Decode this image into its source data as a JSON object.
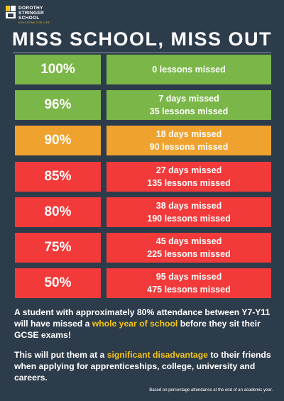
{
  "header": {
    "school_name": [
      "DOROTHY",
      "STRINGER",
      "SCHOOL"
    ],
    "tagline": "EDUCATING FOR LIFE",
    "title": "MISS SCHOOL, MISS OUT"
  },
  "rows": [
    {
      "attendance": "100%",
      "missed": [
        "0 lessons missed"
      ],
      "color": "#7ab648"
    },
    {
      "attendance": "96%",
      "missed": [
        "7 days missed",
        "35 lessons missed"
      ],
      "color": "#7ab648"
    },
    {
      "attendance": "90%",
      "missed": [
        "18 days missed",
        "90 lessons missed"
      ],
      "color": "#f0a22e"
    },
    {
      "attendance": "85%",
      "missed": [
        "27 days missed",
        "135 lessons missed"
      ],
      "color": "#f23a3a"
    },
    {
      "attendance": "80%",
      "missed": [
        "38 days missed",
        "190 lessons missed"
      ],
      "color": "#f23a3a"
    },
    {
      "attendance": "75%",
      "missed": [
        "45 days missed",
        "225 lessons missed"
      ],
      "color": "#f23a3a"
    },
    {
      "attendance": "50%",
      "missed": [
        "95 days missed",
        "475 lessons missed"
      ],
      "color": "#f23a3a"
    }
  ],
  "paragraphs": [
    {
      "before": "A student with approximately 80% attendance between Y7-Y11 will have missed a ",
      "highlight": "whole year of school",
      "after": " before they sit their GCSE exams!"
    },
    {
      "before": "This will put them at a ",
      "highlight": "significant disadvantage",
      "after": " to their friends when applying for apprenticeships, college, university and careers."
    }
  ],
  "footnote": "Based on percentage attendance at the end of an academic year."
}
